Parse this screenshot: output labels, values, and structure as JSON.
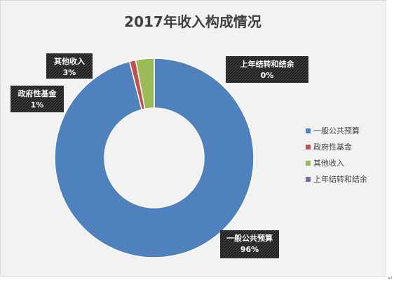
{
  "chart_data": {
    "type": "donut",
    "title": "2017年收入构成情况",
    "categories": [
      "一般公共预算",
      "政府性基金",
      "其他收入",
      "上年结转和结余"
    ],
    "values": [
      96,
      1,
      3,
      0
    ],
    "value_labels": [
      "96%",
      "1%",
      "3%",
      "0%"
    ],
    "colors": [
      "#4f81bd",
      "#c0504d",
      "#9bbb59",
      "#8064a2"
    ],
    "legend_position": "right",
    "data_label_style": "dark patterned callouts"
  },
  "return_mark": "↵"
}
